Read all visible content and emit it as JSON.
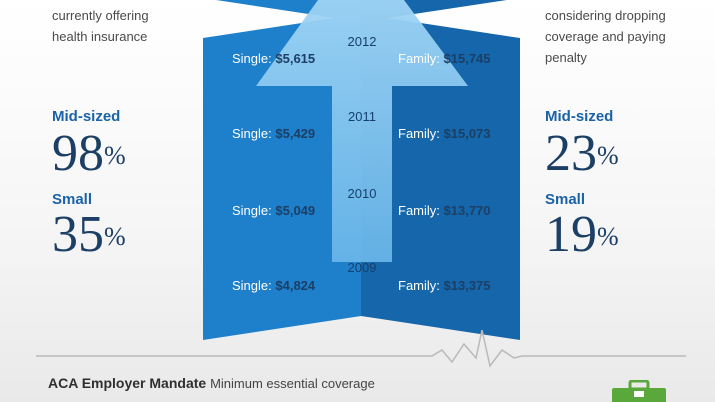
{
  "left_panel": {
    "description": "currently offering\nhealth insurance",
    "stats": [
      {
        "label": "Mid-sized",
        "value": "98",
        "unit": "%"
      },
      {
        "label": "Small",
        "value": "35",
        "unit": "%"
      }
    ]
  },
  "right_panel": {
    "description": "considering dropping\ncoverage and paying\npenalty",
    "stats": [
      {
        "label": "Mid-sized",
        "value": "23",
        "unit": "%"
      },
      {
        "label": "Small",
        "value": "19",
        "unit": "%"
      }
    ]
  },
  "years": [
    {
      "year": "2012",
      "single_label": "Single:",
      "single": "$5,615",
      "family_label": "Family:",
      "family": "$15,745"
    },
    {
      "year": "2011",
      "single_label": "Single:",
      "single": "$5,429",
      "family_label": "Family:",
      "family": "$15,073"
    },
    {
      "year": "2010",
      "single_label": "Single:",
      "single": "$5,049",
      "family_label": "Family:",
      "family": "$13,770"
    },
    {
      "year": "2009",
      "single_label": "Single:",
      "single": "$4,824",
      "family_label": "Family:",
      "family": "$13,375"
    }
  ],
  "footer": {
    "title": "ACA Employer Mandate",
    "subtitle": "Minimum essential coverage"
  },
  "colors": {
    "chevron_left": "#1e7fca",
    "chevron_right": "#1566aa",
    "arrow": "#7fc4ef",
    "accent_blue": "#1a63a8",
    "dark_navy": "#1c3f66",
    "briefcase_green": "#5aa83c"
  },
  "icons": {
    "footer_icon": "briefcase-icon"
  }
}
